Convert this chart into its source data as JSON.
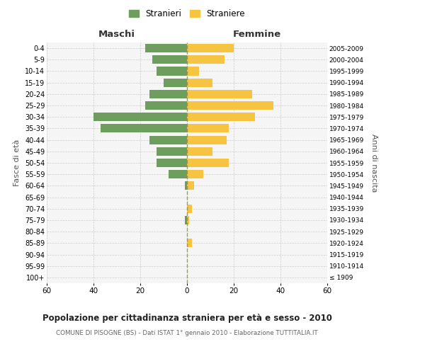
{
  "age_groups": [
    "100+",
    "95-99",
    "90-94",
    "85-89",
    "80-84",
    "75-79",
    "70-74",
    "65-69",
    "60-64",
    "55-59",
    "50-54",
    "45-49",
    "40-44",
    "35-39",
    "30-34",
    "25-29",
    "20-24",
    "15-19",
    "10-14",
    "5-9",
    "0-4"
  ],
  "birth_years": [
    "≤ 1909",
    "1910-1914",
    "1915-1919",
    "1920-1924",
    "1925-1929",
    "1930-1934",
    "1935-1939",
    "1940-1944",
    "1945-1949",
    "1950-1954",
    "1955-1959",
    "1960-1964",
    "1965-1969",
    "1970-1974",
    "1975-1979",
    "1980-1984",
    "1985-1989",
    "1990-1994",
    "1995-1999",
    "2000-2004",
    "2005-2009"
  ],
  "maschi": [
    0,
    0,
    0,
    0,
    0,
    1,
    0,
    0,
    1,
    8,
    13,
    13,
    16,
    37,
    40,
    18,
    16,
    10,
    13,
    15,
    18
  ],
  "femmine": [
    0,
    0,
    0,
    2,
    0,
    1,
    2,
    0,
    3,
    7,
    18,
    11,
    17,
    18,
    29,
    37,
    28,
    11,
    5,
    16,
    20
  ],
  "maschi_color": "#6e9e5e",
  "femmine_color": "#f5c542",
  "background_color": "#f5f5f5",
  "grid_color": "#cccccc",
  "title": "Popolazione per cittadinanza straniera per età e sesso - 2010",
  "subtitle": "COMUNE DI PISOGNE (BS) - Dati ISTAT 1° gennaio 2010 - Elaborazione TUTTITALIA.IT",
  "xlabel_left": "Maschi",
  "xlabel_right": "Femmine",
  "ylabel_left": "Fasce di età",
  "ylabel_right": "Anni di nascita",
  "legend_maschi": "Stranieri",
  "legend_femmine": "Straniere",
  "xlim": 60,
  "bar_height": 0.75
}
